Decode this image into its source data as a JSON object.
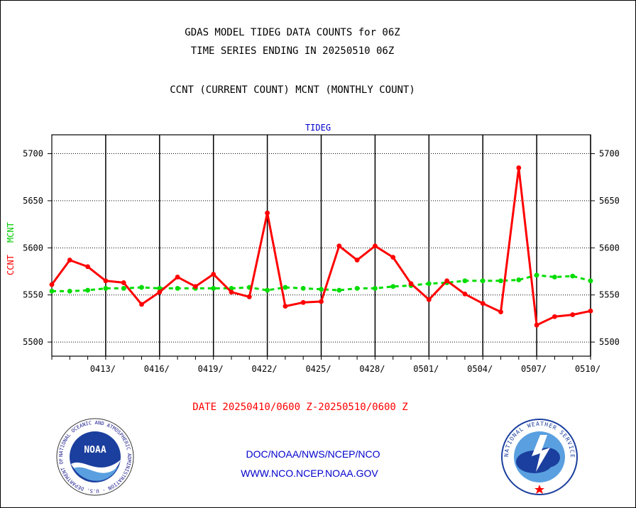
{
  "header": {
    "title_line1": "GDAS MODEL TIDEG DATA COUNTS for 06Z",
    "title_line2": "TIME SERIES ENDING IN 20250510 06Z",
    "subtitle": "CCNT (CURRENT COUNT) MCNT (MONTHLY COUNT)"
  },
  "footer": {
    "date_range": "DATE 20250410/0600 Z-20250510/0600 Z",
    "org_line": "DOC/NOAA/NWS/NCEP/NCO",
    "url": "WWW.NCO.NCEP.NOAA.GOV",
    "noaa_logo_text": "NOAA",
    "noaa_ring_text": "NATIONAL OCEANIC AND ATMOSPHERIC ADMINISTRATION · U.S. DEPARTMENT OF COMMERCE ·",
    "nws_ring_text": "NATIONAL WEATHER SERVICE"
  },
  "colors": {
    "ccnt": "#ff0000",
    "mcnt": "#00dd00",
    "panel_title": "#0000cc",
    "date_range": "#ff0000",
    "footer_text": "#0000cc"
  },
  "chart_data": {
    "type": "line",
    "panel_title": "TIDEG",
    "ylabel_ccnt": "CCNT",
    "ylabel_mcnt": "MCNT",
    "ylim": [
      5485,
      5720
    ],
    "yticks": [
      5500,
      5550,
      5600,
      5650,
      5700
    ],
    "ytick_labels": [
      "5500",
      "5550",
      "5600",
      "5650",
      "5700"
    ],
    "xlim_days": [
      0,
      30
    ],
    "xtick_positions": [
      3,
      6,
      9,
      12,
      15,
      18,
      21,
      24,
      27,
      30
    ],
    "xtick_labels": [
      "0413/",
      "0416/",
      "0419/",
      "0422/",
      "0425/",
      "0428/",
      "0501/",
      "0504/",
      "0507/",
      "0510/"
    ],
    "grid": true,
    "series": [
      {
        "name": "CCNT",
        "style": "solid",
        "x": [
          0,
          1,
          2,
          3,
          4,
          5,
          6,
          7,
          8,
          9,
          10,
          11,
          12,
          13,
          14,
          15,
          16,
          17,
          18,
          19,
          20,
          21,
          22,
          23,
          24,
          25,
          26,
          27,
          28,
          29,
          30
        ],
        "values": [
          5561,
          5587,
          5580,
          5565,
          5563,
          5540,
          5553,
          5569,
          5559,
          5572,
          5553,
          5548,
          5637,
          5538,
          5542,
          5543,
          5602,
          5587,
          5602,
          5590,
          5562,
          5545,
          5565,
          5551,
          5541,
          5532,
          5685,
          5518,
          5527,
          5529,
          5533
        ]
      },
      {
        "name": "MCNT",
        "style": "dashed",
        "x": [
          0,
          1,
          2,
          3,
          4,
          5,
          6,
          7,
          8,
          9,
          10,
          11,
          12,
          13,
          14,
          15,
          16,
          17,
          18,
          19,
          20,
          21,
          22,
          23,
          24,
          25,
          26,
          27,
          28,
          29,
          30
        ],
        "values": [
          5554,
          5554,
          5555,
          5557,
          5557,
          5558,
          5557,
          5557,
          5557,
          5557,
          5557,
          5558,
          5555,
          5558,
          5557,
          5556,
          5555,
          5557,
          5557,
          5559,
          5560,
          5562,
          5563,
          5565,
          5565,
          5565,
          5566,
          5571,
          5569,
          5570,
          5565
        ]
      }
    ]
  }
}
